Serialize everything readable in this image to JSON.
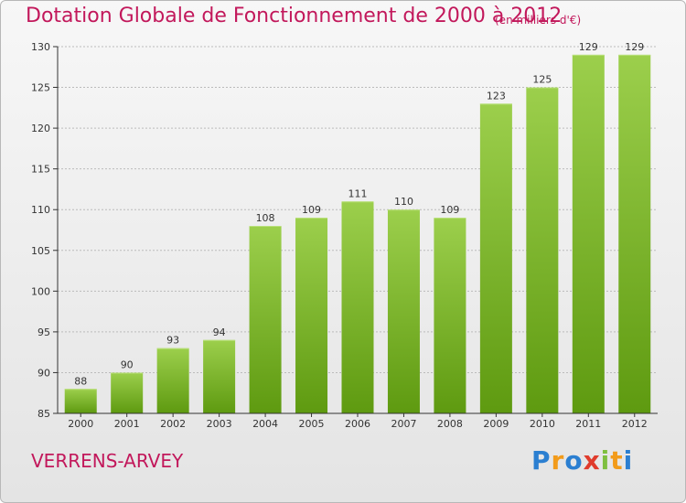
{
  "chart_data": {
    "type": "bar",
    "title": "Dotation Globale de Fonctionnement de 2000 à 2012",
    "unit_label": "(en milliers d'€)",
    "categories": [
      "2000",
      "2001",
      "2002",
      "2003",
      "2004",
      "2005",
      "2006",
      "2007",
      "2008",
      "2009",
      "2010",
      "2011",
      "2012"
    ],
    "values": [
      88,
      90,
      93,
      94,
      108,
      109,
      111,
      110,
      109,
      123,
      125,
      129,
      129
    ],
    "ylim": [
      85,
      130
    ],
    "yticks": [
      85,
      90,
      95,
      100,
      105,
      110,
      115,
      120,
      125,
      130
    ],
    "grid": true,
    "bar_color_top": "#9ccf4c",
    "bar_color_bottom": "#5e9a10"
  },
  "footer": {
    "commune": "VERRENS-ARVEY",
    "logo_letters": [
      "P",
      "r",
      "o",
      "x",
      "i",
      "t",
      "i"
    ],
    "logo_colors": [
      "#2b7fd1",
      "#f29b1a",
      "#2b7fd1",
      "#e03b2c",
      "#7fbf3f",
      "#f29b1a",
      "#2b7fd1"
    ]
  },
  "colors": {
    "accent": "#c2185b",
    "axis": "#333333",
    "grid": "#bbbbbb"
  }
}
